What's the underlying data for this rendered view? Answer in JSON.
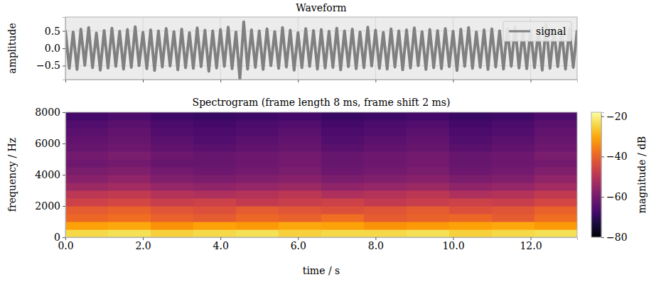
{
  "chart_data": [
    {
      "type": "line",
      "title": "Waveform",
      "ylabel": "amplitude",
      "x": [
        0,
        0.1,
        0.2,
        0.3,
        0.4,
        0.5,
        0.6,
        0.7,
        0.8,
        0.9,
        1,
        1.1,
        1.2,
        1.3,
        1.4,
        1.5,
        1.6,
        1.7,
        1.8,
        1.9,
        2,
        2.1,
        2.2,
        2.3,
        2.4,
        2.5,
        2.6,
        2.7,
        2.8,
        2.9,
        3,
        3.1,
        3.2,
        3.3,
        3.4,
        3.5,
        3.6,
        3.7,
        3.8,
        3.9,
        4,
        4.1,
        4.2,
        4.3,
        4.4,
        4.5,
        4.6,
        4.7,
        4.8,
        4.9,
        5,
        5.1,
        5.2,
        5.3,
        5.4,
        5.5,
        5.6,
        5.7,
        5.8,
        5.9,
        6,
        6.1,
        6.2,
        6.3,
        6.4,
        6.5,
        6.6,
        6.7,
        6.8,
        6.9,
        7,
        7.1,
        7.2,
        7.3,
        7.4,
        7.5,
        7.6,
        7.7,
        7.8,
        7.9,
        8,
        8.1,
        8.2,
        8.3,
        8.4,
        8.5,
        8.6,
        8.7,
        8.8,
        8.9,
        9,
        9.1,
        9.2,
        9.3,
        9.4,
        9.5,
        9.6,
        9.7,
        9.8,
        9.9,
        10,
        10.1,
        10.2,
        10.3,
        10.4,
        10.5,
        10.6,
        10.7,
        10.8,
        10.9,
        11,
        11.1,
        11.2,
        11.3,
        11.4,
        11.5,
        11.6,
        11.7,
        11.8,
        11.9,
        12,
        12.1,
        12.2,
        12.3,
        12.4,
        12.5,
        12.6,
        12.7,
        12.8,
        12.9,
        13,
        13.1,
        13.2
      ],
      "series": [
        {
          "name": "signal",
          "color": "#808080",
          "values": [
            0.52,
            -0.58,
            0.47,
            -0.61,
            0.55,
            -0.49,
            0.6,
            -0.56,
            0.44,
            -0.63,
            0.51,
            -0.57,
            0.58,
            -0.52,
            0.49,
            -0.6,
            0.54,
            -0.55,
            0.62,
            -0.5,
            0.46,
            -0.59,
            0.53,
            -0.64,
            0.5,
            -0.54,
            0.57,
            -0.51,
            0.48,
            -0.62,
            0.55,
            -0.56,
            0.45,
            -0.58,
            0.59,
            -0.53,
            0.52,
            -0.66,
            0.5,
            -0.57,
            0.54,
            -0.52,
            0.61,
            -0.59,
            0.47,
            -0.88,
            0.76,
            -0.6,
            0.53,
            -0.55,
            0.5,
            -0.61,
            0.56,
            -0.5,
            0.48,
            -0.58,
            0.6,
            -0.54,
            0.52,
            -0.63,
            0.45,
            -0.56,
            0.57,
            -0.52,
            0.51,
            -0.6,
            0.54,
            -0.57,
            0.49,
            -0.55,
            0.58,
            -0.62,
            0.5,
            -0.53,
            0.55,
            -0.59,
            0.47,
            -0.56,
            0.61,
            -0.51,
            0.52,
            -0.58,
            0.46,
            -0.6,
            0.56,
            -0.54,
            0.5,
            -0.62,
            0.53,
            -0.57,
            0.59,
            -0.5,
            0.48,
            -0.61,
            0.54,
            -0.56,
            0.51,
            -0.59,
            0.57,
            -0.53,
            0.49,
            -0.64,
            0.55,
            -0.52,
            0.6,
            -0.58,
            0.47,
            -0.55,
            0.53,
            -0.61,
            0.56,
            -0.54,
            0.5,
            -0.6,
            0.58,
            -0.52,
            0.62,
            -0.57,
            0.48,
            -0.59,
            0.54,
            -0.56,
            0.51,
            -0.63,
            0.7,
            -0.58,
            0.55,
            -0.53,
            0.49,
            -0.6,
            0.57,
            -0.55,
            0.52
          ]
        }
      ],
      "xlim": [
        0,
        13.2
      ],
      "ylim": [
        -0.9,
        0.9
      ],
      "xticks": [
        0,
        2,
        4,
        6,
        8,
        10,
        12
      ],
      "yticks": [
        {
          "value": -0.5,
          "label": "−0.5"
        },
        {
          "value": 0,
          "label": "0.0"
        },
        0.5
      ],
      "grid": true,
      "legend": "upper right",
      "tick_labels": "y"
    },
    {
      "type": "heatmap",
      "title": "Spectrogram (frame length 8 ms, frame shift 2 ms)",
      "xlabel": "time / s",
      "ylabel": "frequency / Hz",
      "x_bins": [
        0,
        1.1,
        2.2,
        3.3,
        4.4,
        5.5,
        6.6,
        7.7,
        8.8,
        9.9,
        11,
        12.1,
        13.2
      ],
      "y_bins": [
        0,
        500,
        1000,
        1500,
        2000,
        2500,
        3000,
        3500,
        4000,
        4500,
        5000,
        5500,
        6000,
        6500,
        7000,
        7500,
        8000
      ],
      "cells": [
        [
          -24,
          -23,
          -25,
          -24,
          -23,
          -25,
          -24,
          -24,
          -23,
          -25,
          -24,
          -23
        ],
        [
          -31,
          -30,
          -33,
          -31,
          -32,
          -30,
          -31,
          -33,
          -32,
          -31,
          -30,
          -32
        ],
        [
          -39,
          -38,
          -40,
          -41,
          -39,
          -40,
          -38,
          -41,
          -40,
          -39,
          -41,
          -38
        ],
        [
          -41,
          -40,
          -42,
          -43,
          -41,
          -42,
          -43,
          -42,
          -41,
          -43,
          -42,
          -40
        ],
        [
          -46,
          -45,
          -47,
          -46,
          -48,
          -47,
          -46,
          -48,
          -47,
          -46,
          -47,
          -45
        ],
        [
          -49,
          -48,
          -50,
          -51,
          -50,
          -49,
          -51,
          -50,
          -49,
          -51,
          -50,
          -48
        ],
        [
          -54,
          -53,
          -55,
          -56,
          -55,
          -54,
          -56,
          -55,
          -54,
          -56,
          -55,
          -53
        ],
        [
          -57,
          -56,
          -58,
          -59,
          -58,
          -57,
          -59,
          -58,
          -57,
          -59,
          -58,
          -56
        ],
        [
          -59,
          -58,
          -60,
          -61,
          -60,
          -59,
          -61,
          -60,
          -59,
          -61,
          -60,
          -58
        ],
        [
          -61,
          -60,
          -62,
          -62,
          -61,
          -60,
          -62,
          -61,
          -60,
          -62,
          -61,
          -60
        ],
        [
          -60,
          -59,
          -61,
          -62,
          -61,
          -60,
          -62,
          -61,
          -60,
          -62,
          -61,
          -59
        ],
        [
          -62,
          -61,
          -63,
          -64,
          -63,
          -62,
          -64,
          -63,
          -62,
          -64,
          -63,
          -61
        ],
        [
          -63,
          -62,
          -64,
          -65,
          -64,
          -63,
          -65,
          -64,
          -63,
          -65,
          -64,
          -62
        ],
        [
          -64,
          -63,
          -65,
          -66,
          -65,
          -64,
          -66,
          -65,
          -64,
          -66,
          -65,
          -63
        ],
        [
          -65,
          -64,
          -66,
          -67,
          -66,
          -65,
          -67,
          -66,
          -65,
          -67,
          -66,
          -64
        ],
        [
          -67,
          -66,
          -68,
          -69,
          -68,
          -67,
          -69,
          -68,
          -67,
          -69,
          -68,
          -66
        ]
      ],
      "xlim": [
        0,
        13.2
      ],
      "ylim": [
        0,
        8000
      ],
      "xticks": [
        {
          "value": 0,
          "label": "0.0"
        },
        {
          "value": 2,
          "label": "2.0"
        },
        {
          "value": 4,
          "label": "4.0"
        },
        {
          "value": 6,
          "label": "6.0"
        },
        {
          "value": 8,
          "label": "8.0"
        },
        {
          "value": 10,
          "label": "10.0"
        },
        {
          "value": 12,
          "label": "12.0"
        }
      ],
      "yticks": [
        0,
        2000,
        4000,
        6000,
        8000
      ],
      "colorbar": {
        "label": "magnitude / dB",
        "range": [
          -80,
          -18
        ],
        "ticks": [
          {
            "value": -80,
            "label": "−80"
          },
          {
            "value": -60,
            "label": "−60"
          },
          {
            "value": -40,
            "label": "−40"
          },
          {
            "value": -20,
            "label": "−20"
          }
        ]
      }
    }
  ]
}
